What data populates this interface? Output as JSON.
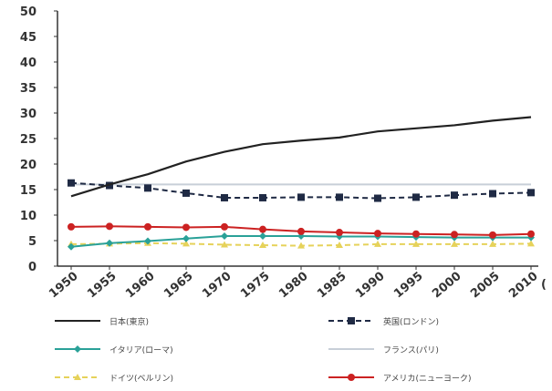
{
  "chart_data": {
    "type": "line",
    "title": "",
    "xlabel": "",
    "ylabel": "",
    "unit_fragment": "(",
    "x": [
      1950,
      1955,
      1960,
      1965,
      1970,
      1975,
      1980,
      1985,
      1990,
      1995,
      2000,
      2005,
      2010
    ],
    "x_tick_labels": [
      "1950",
      "1955",
      "1960",
      "1965",
      "1970",
      "1975",
      "1980",
      "1985",
      "1990",
      "1995",
      "2000",
      "2005",
      "2010"
    ],
    "y_ticks": [
      0,
      5,
      10,
      15,
      20,
      25,
      30,
      35,
      40,
      45,
      50
    ],
    "ylim": [
      0,
      50
    ],
    "grid": false,
    "legend_position": "bottom",
    "series": [
      {
        "name": "日本(東京)",
        "color": "#222222",
        "style": "solid",
        "marker": "none",
        "values": [
          13.7,
          16.0,
          18.0,
          20.5,
          22.4,
          23.9,
          24.6,
          25.2,
          26.4,
          27.0,
          27.6,
          28.5,
          29.2
        ]
      },
      {
        "name": "英国(ロンドン)",
        "color": "#1f2a44",
        "style": "dash",
        "marker": "square",
        "values": [
          16.3,
          15.8,
          15.3,
          14.3,
          13.4,
          13.4,
          13.5,
          13.5,
          13.3,
          13.5,
          13.9,
          14.2,
          14.4
        ]
      },
      {
        "name": "イタリア(ローマ)",
        "color": "#2aa198",
        "style": "solid",
        "marker": "diamond",
        "values": [
          3.8,
          4.5,
          4.9,
          5.4,
          5.9,
          5.9,
          5.9,
          5.8,
          5.8,
          5.7,
          5.6,
          5.6,
          5.6
        ]
      },
      {
        "name": "フランス(パリ)",
        "color": "#c8cfd8",
        "style": "solid",
        "marker": "none",
        "values": [
          16.0,
          16.0,
          16.0,
          16.0,
          16.0,
          16.0,
          16.0,
          16.0,
          16.0,
          16.0,
          16.0,
          16.0,
          16.0
        ]
      },
      {
        "name": "ドイツ(ベルリン)",
        "color": "#e6d25a",
        "style": "dash",
        "marker": "triangle",
        "values": [
          4.3,
          4.4,
          4.5,
          4.4,
          4.2,
          4.1,
          4.0,
          4.1,
          4.3,
          4.3,
          4.3,
          4.3,
          4.4
        ]
      },
      {
        "name": "アメリカ(ニューヨーク)",
        "color": "#cc2222",
        "style": "solid",
        "marker": "circle",
        "values": [
          7.7,
          7.8,
          7.7,
          7.6,
          7.7,
          7.2,
          6.8,
          6.6,
          6.4,
          6.3,
          6.2,
          6.1,
          6.3
        ]
      }
    ]
  }
}
